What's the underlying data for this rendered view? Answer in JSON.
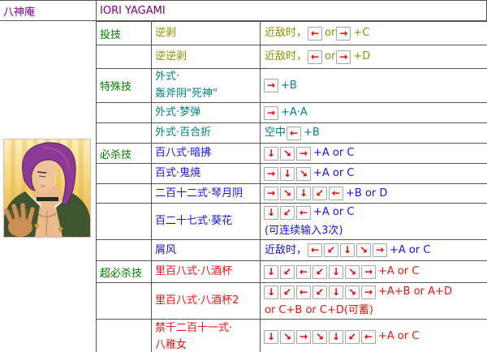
{
  "header": {
    "name_cn": "八神庵",
    "name_en": "IORI YAGAMI"
  },
  "colors": {
    "purple": "#800080",
    "green": "#008000",
    "olive": "#8F8F00",
    "teal": "#008080",
    "blue": "#1414E6",
    "red": "#F01010",
    "arrow": "#E00000",
    "border": "#555555"
  },
  "portrait": {
    "description": "iori-yagami-portrait"
  },
  "moves": {
    "rows": [
      {
        "category": "投技",
        "color": "olive",
        "name": [
          "逆剥"
        ],
        "cmd": [
          [
            {
              "text": "近敌时，"
            },
            {
              "btn": "←",
              "dir": "left"
            },
            {
              "text": "or"
            },
            {
              "btn": "→",
              "dir": "right"
            },
            {
              "text": "+C"
            }
          ]
        ]
      },
      {
        "category": "",
        "color": "olive",
        "name": [
          "逆逆剥"
        ],
        "cmd": [
          [
            {
              "text": "近敌时，"
            },
            {
              "btn": "←",
              "dir": "left"
            },
            {
              "text": "or"
            },
            {
              "btn": "→",
              "dir": "right"
            },
            {
              "text": "+D"
            }
          ]
        ]
      },
      {
        "category": "特殊技",
        "color": "teal",
        "name": [
          "外式·",
          "轰斧阴\"死神\""
        ],
        "cmd": [
          [
            {
              "btn": "→",
              "dir": "right"
            },
            {
              "text": "+B"
            }
          ]
        ]
      },
      {
        "category": "",
        "color": "teal",
        "name": [
          "外式·梦弹"
        ],
        "cmd": [
          [
            {
              "btn": "→",
              "dir": "right"
            },
            {
              "text": "+A·A"
            }
          ]
        ]
      },
      {
        "category": "",
        "color": "teal",
        "name": [
          "外式·百合折"
        ],
        "cmd": [
          [
            {
              "text": "空中"
            },
            {
              "btn": "←",
              "dir": "left"
            },
            {
              "text": "+B"
            }
          ]
        ]
      },
      {
        "category": "必杀技",
        "color": "blue",
        "name": [
          "百八式·暗拂"
        ],
        "cmd": [
          [
            {
              "btn": "↓",
              "dir": "down"
            },
            {
              "btn": "↘",
              "dir": "down-right"
            },
            {
              "btn": "→",
              "dir": "right"
            },
            {
              "text": "+A or C"
            }
          ]
        ]
      },
      {
        "category": "",
        "color": "blue",
        "name": [
          "百式·鬼焼"
        ],
        "cmd": [
          [
            {
              "btn": "→",
              "dir": "right"
            },
            {
              "btn": "↓",
              "dir": "down"
            },
            {
              "btn": "↘",
              "dir": "down-right"
            },
            {
              "text": "+A or C"
            }
          ]
        ]
      },
      {
        "category": "",
        "color": "blue",
        "name": [
          "二百十二式·琴月阴"
        ],
        "cmd": [
          [
            {
              "btn": "→",
              "dir": "right"
            },
            {
              "btn": "↘",
              "dir": "down-right"
            },
            {
              "btn": "↓",
              "dir": "down"
            },
            {
              "btn": "↙",
              "dir": "down-left"
            },
            {
              "btn": "←",
              "dir": "left"
            },
            {
              "text": "+B or D"
            }
          ]
        ]
      },
      {
        "category": "",
        "color": "blue",
        "name": [
          "百二十七式·葵花"
        ],
        "cmd": [
          [
            {
              "btn": "↓",
              "dir": "down"
            },
            {
              "btn": "↙",
              "dir": "down-left"
            },
            {
              "btn": "←",
              "dir": "left"
            },
            {
              "text": "+A or C"
            }
          ],
          [
            {
              "text": "(可连续输入3次)"
            }
          ]
        ]
      },
      {
        "category": "",
        "color": "blue",
        "name": [
          "屑风"
        ],
        "cmd": [
          [
            {
              "text": "近敌时，"
            },
            {
              "btn": "←",
              "dir": "left"
            },
            {
              "btn": "↙",
              "dir": "down-left"
            },
            {
              "btn": "↓",
              "dir": "down"
            },
            {
              "btn": "↘",
              "dir": "down-right"
            },
            {
              "btn": "→",
              "dir": "right"
            },
            {
              "text": "+A or C"
            }
          ]
        ]
      },
      {
        "category": "超必杀技",
        "color": "red",
        "name": [
          "里百八式·八酒杯"
        ],
        "cmd": [
          [
            {
              "btn": "↓",
              "dir": "down"
            },
            {
              "btn": "↙",
              "dir": "down-left"
            },
            {
              "btn": "←",
              "dir": "left"
            },
            {
              "btn": "↙",
              "dir": "down-left"
            },
            {
              "btn": "↓",
              "dir": "down"
            },
            {
              "btn": "↘",
              "dir": "down-right"
            },
            {
              "btn": "→",
              "dir": "right"
            },
            {
              "text": "+A or C"
            }
          ]
        ]
      },
      {
        "category": "",
        "color": "red",
        "name": [
          "里百八式·八酒杯2"
        ],
        "cmd": [
          [
            {
              "btn": "↓",
              "dir": "down"
            },
            {
              "btn": "↙",
              "dir": "down-left"
            },
            {
              "btn": "←",
              "dir": "left"
            },
            {
              "btn": "↙",
              "dir": "down-left"
            },
            {
              "btn": "↓",
              "dir": "down"
            },
            {
              "btn": "↘",
              "dir": "down-right"
            },
            {
              "btn": "→",
              "dir": "right"
            },
            {
              "text": "+A+B or A+D"
            }
          ],
          [
            {
              "text": "or C+B or C+D(可蓄)"
            }
          ]
        ]
      },
      {
        "category": "",
        "color": "red",
        "name": [
          "禁千二百十一式·",
          "八稚女"
        ],
        "cmd": [
          [
            {
              "btn": "↓",
              "dir": "down"
            },
            {
              "btn": "↘",
              "dir": "down-right"
            },
            {
              "btn": "→",
              "dir": "right"
            },
            {
              "btn": "↘",
              "dir": "down-right"
            },
            {
              "btn": "↓",
              "dir": "down"
            },
            {
              "btn": "↙",
              "dir": "down-left"
            },
            {
              "btn": "←",
              "dir": "left"
            },
            {
              "text": "+A or C"
            }
          ]
        ]
      }
    ]
  }
}
